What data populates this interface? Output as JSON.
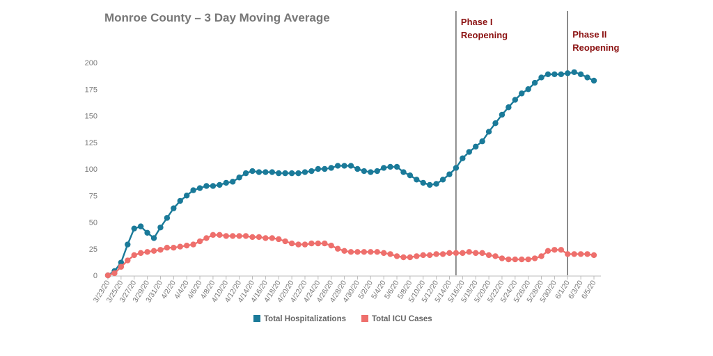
{
  "chart_data": {
    "type": "line",
    "title": "Monroe County – 3 Day Moving Average",
    "xlabel": "",
    "ylabel": "",
    "ylim": [
      0,
      200
    ],
    "yticks": [
      0,
      25,
      50,
      75,
      100,
      125,
      150,
      175,
      200
    ],
    "grid": false,
    "legend_position": "bottom",
    "x": [
      "3/23/20",
      "3/24/20",
      "3/25/20",
      "3/26/20",
      "3/27/20",
      "3/28/20",
      "3/29/20",
      "3/30/20",
      "3/31/20",
      "4/1/20",
      "4/2/20",
      "4/3/20",
      "4/4/20",
      "4/5/20",
      "4/6/20",
      "4/7/20",
      "4/8/20",
      "4/9/20",
      "4/10/20",
      "4/11/20",
      "4/12/20",
      "4/13/20",
      "4/14/20",
      "4/15/20",
      "4/16/20",
      "4/17/20",
      "4/18/20",
      "4/19/20",
      "4/20/20",
      "4/21/20",
      "4/22/20",
      "4/23/20",
      "4/24/20",
      "4/25/20",
      "4/26/20",
      "4/27/20",
      "4/28/20",
      "4/29/20",
      "4/30/20",
      "5/1/20",
      "5/2/20",
      "5/3/20",
      "5/4/20",
      "5/5/20",
      "5/6/20",
      "5/7/20",
      "5/8/20",
      "5/9/20",
      "5/10/20",
      "5/11/20",
      "5/12/20",
      "5/13/20",
      "5/14/20",
      "5/15/20",
      "5/16/20",
      "5/17/20",
      "5/18/20",
      "5/19/20",
      "5/20/20",
      "5/21/20",
      "5/22/20",
      "5/23/20",
      "5/24/20",
      "5/25/20",
      "5/26/20",
      "5/27/20",
      "5/28/20",
      "5/29/20",
      "5/30/20",
      "5/31/20",
      "6/1/20",
      "6/2/20",
      "6/3/20",
      "6/4/20",
      "6/5/20"
    ],
    "x_tick_labels": [
      "3/23/20",
      "3/25/20",
      "3/27/20",
      "3/29/20",
      "3/31/20",
      "4/2/20",
      "4/4/20",
      "4/6/20",
      "4/8/20",
      "4/10/20",
      "4/12/20",
      "4/14/20",
      "4/16/20",
      "4/18/20",
      "4/20/20",
      "4/22/20",
      "4/24/20",
      "4/26/20",
      "4/28/20",
      "4/30/20",
      "5/2/20",
      "5/4/20",
      "5/6/20",
      "5/8/20",
      "5/10/20",
      "5/12/20",
      "5/14/20",
      "5/16/20",
      "5/18/20",
      "5/20/20",
      "5/22/20",
      "5/24/20",
      "5/26/20",
      "5/28/20",
      "5/30/20",
      "6/1/20",
      "6/3/20",
      "6/5/20"
    ],
    "series": [
      {
        "name": "Total Hospitalizations",
        "color": "#1a7a99",
        "values": [
          0,
          4,
          12,
          29,
          44,
          46,
          40,
          35,
          45,
          54,
          63,
          70,
          75,
          80,
          82,
          84,
          84,
          85,
          87,
          88,
          92,
          96,
          98,
          97,
          97,
          97,
          96,
          96,
          96,
          96,
          97,
          98,
          100,
          100,
          101,
          103,
          103,
          103,
          100,
          98,
          97,
          98,
          101,
          102,
          102,
          97,
          94,
          90,
          87,
          85,
          86,
          90,
          95,
          101,
          110,
          116,
          121,
          126,
          135,
          143,
          151,
          158,
          165,
          171,
          175,
          181,
          186,
          189,
          189,
          189,
          190,
          191,
          189,
          186,
          183
        ]
      },
      {
        "name": "Total ICU Cases",
        "color": "#ee6f6c",
        "values": [
          0,
          2,
          8,
          14,
          19,
          21,
          22,
          23,
          24,
          26,
          26,
          27,
          28,
          29,
          32,
          35,
          38,
          38,
          37,
          37,
          37,
          37,
          36,
          36,
          35,
          35,
          34,
          32,
          30,
          29,
          29,
          30,
          30,
          30,
          28,
          25,
          23,
          22,
          22,
          22,
          22,
          22,
          21,
          20,
          18,
          17,
          17,
          18,
          19,
          19,
          20,
          20,
          21,
          21,
          21,
          22,
          21,
          21,
          19,
          18,
          16,
          15,
          15,
          15,
          15,
          16,
          18,
          23,
          24,
          24,
          20,
          20,
          20,
          20,
          19
        ]
      }
    ],
    "annotations": [
      {
        "x": "5/15/20",
        "line1": "Phase I",
        "line2": "Reopening",
        "color": "#8b1111"
      },
      {
        "x": "6/1/20",
        "line1": "Phase II",
        "line2": "Reopening",
        "color": "#8b1111"
      }
    ]
  }
}
